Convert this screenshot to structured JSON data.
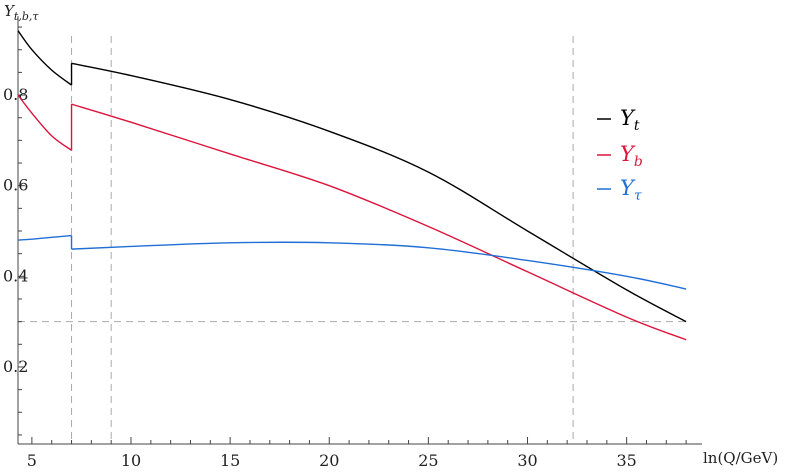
{
  "chart_data": {
    "type": "line",
    "xlabel": "ln(Q/GeV)",
    "ylabel": "Y",
    "ylabel_sub": "t,b,τ",
    "xlim": [
      4.3,
      38.7
    ],
    "ylim": [
      0.03,
      0.97
    ],
    "x_ticks": [
      5,
      10,
      15,
      20,
      25,
      30,
      35
    ],
    "y_ticks": [
      0.2,
      0.4,
      0.6,
      0.8
    ],
    "x_minor_step": 1,
    "y_minor_step": 0.05,
    "grid": false,
    "legend_position": "right",
    "vertical_reference_lines": [
      7,
      9,
      32.3
    ],
    "horizontal_reference_lines": [
      0.3
    ],
    "series": [
      {
        "name": "Y",
        "name_sub": "t",
        "color": "#000000",
        "segments": [
          {
            "x": [
              4.3,
              5,
              6,
              7
            ],
            "y": [
              0.942,
              0.9,
              0.855,
              0.822
            ]
          },
          {
            "x": [
              7,
              10,
              15,
              20,
              25,
              30,
              35,
              38
            ],
            "y": [
              0.87,
              0.843,
              0.79,
              0.72,
              0.63,
              0.5,
              0.37,
              0.3
            ]
          }
        ]
      },
      {
        "name": "Y",
        "name_sub": "b",
        "color": "#dc143c",
        "segments": [
          {
            "x": [
              4.3,
              5,
              6,
              7
            ],
            "y": [
              0.8,
              0.76,
              0.71,
              0.678
            ]
          },
          {
            "x": [
              7,
              10,
              15,
              20,
              25,
              30,
              35,
              38
            ],
            "y": [
              0.78,
              0.74,
              0.67,
              0.6,
              0.51,
              0.41,
              0.31,
              0.26
            ]
          }
        ]
      },
      {
        "name": "Y",
        "name_sub": "τ",
        "color": "#1f6fd6",
        "segments": [
          {
            "x": [
              4.3,
              5,
              6,
              7
            ],
            "y": [
              0.48,
              0.482,
              0.486,
              0.49
            ]
          },
          {
            "x": [
              7,
              10,
              15,
              20,
              25,
              30,
              35,
              38
            ],
            "y": [
              0.46,
              0.466,
              0.474,
              0.474,
              0.463,
              0.435,
              0.4,
              0.372
            ]
          }
        ]
      }
    ]
  }
}
